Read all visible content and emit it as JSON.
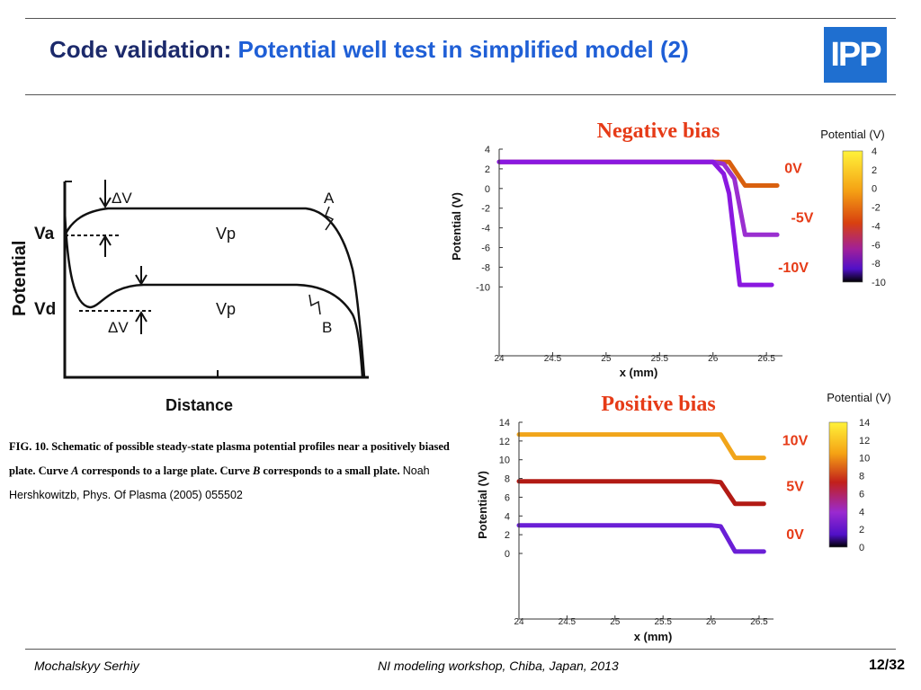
{
  "header": {
    "title_main": "Code validation:",
    "title_sub": "Potential well test in simplified model (2)",
    "logo_text": "IPP"
  },
  "schematic": {
    "y_axis_label": "Potential",
    "x_axis_label": "Distance",
    "labels": {
      "va": "Va",
      "vd": "Vd",
      "vp_top": "Vp",
      "vp_bottom": "Vp",
      "dv_top": "ΔV",
      "dv_bottom": "ΔV",
      "curve_a": "A",
      "curve_b": "B"
    }
  },
  "caption": {
    "fig": "FIG. 10. Schematic of possible steady-state plasma potential profiles near a positively biased plate. Curve",
    "a": "A",
    "mid": "corresponds to a large plate. Curve",
    "b": "B",
    "end": "corresponds to a small plate.",
    "ref": "Noah Hershkowitzb, Phys. Of Plasma (2005) 055502"
  },
  "chart_data": [
    {
      "type": "line",
      "title": "Negative bias",
      "xlabel": "x (mm)",
      "ylabel": "Potential (V)",
      "x_ticks": [
        "24",
        "24.5",
        "25",
        "25.5",
        "26",
        "26.5"
      ],
      "y_ticks": [
        "4",
        "2",
        "0",
        "-2",
        "-4",
        "-6",
        "-8",
        "-10"
      ],
      "xlim": [
        24,
        26.65
      ],
      "ylim": [
        -17,
        4
      ],
      "colorbar": {
        "label": "Potential (V)",
        "ticks": [
          "4",
          "2",
          "0",
          "-2",
          "-4",
          "-6",
          "-8",
          "-10"
        ],
        "range": [
          -10,
          4
        ]
      },
      "series": [
        {
          "name": "0V",
          "color": "#d9600f",
          "x": [
            24,
            24.5,
            25,
            25.5,
            26,
            26.1,
            26.15,
            26.3,
            26.6
          ],
          "y": [
            2.7,
            2.7,
            2.7,
            2.7,
            2.7,
            2.7,
            2.7,
            0.3,
            0.3
          ]
        },
        {
          "name": "-5V",
          "color": "#9a2fd0",
          "x": [
            24,
            24.5,
            25,
            25.5,
            26,
            26.1,
            26.2,
            26.3,
            26.6
          ],
          "y": [
            2.7,
            2.7,
            2.7,
            2.7,
            2.7,
            2.5,
            1.0,
            -4.7,
            -4.7
          ]
        },
        {
          "name": "-10V",
          "color": "#8a18e0",
          "x": [
            24,
            24.5,
            25,
            25.5,
            26,
            26.1,
            26.15,
            26.25,
            26.55
          ],
          "y": [
            2.7,
            2.7,
            2.7,
            2.7,
            2.7,
            1.5,
            -0.5,
            -9.8,
            -9.8
          ]
        }
      ]
    },
    {
      "type": "line",
      "title": "Positive bias",
      "xlabel": "x (mm)",
      "ylabel": "Potential (V)",
      "x_ticks": [
        "24",
        "24.5",
        "25",
        "25.5",
        "26",
        "26.5"
      ],
      "y_ticks": [
        "14",
        "12",
        "10",
        "8",
        "6",
        "4",
        "2",
        "0"
      ],
      "xlim": [
        24,
        26.65
      ],
      "ylim": [
        -7,
        14
      ],
      "colorbar": {
        "label": "Potential (V)",
        "ticks": [
          "14",
          "12",
          "10",
          "8",
          "6",
          "4",
          "2",
          "0"
        ],
        "range": [
          0,
          14
        ]
      },
      "series": [
        {
          "name": "10V",
          "color": "#f1a51a",
          "x": [
            24,
            24.5,
            25,
            25.5,
            26,
            26.1,
            26.25,
            26.55
          ],
          "y": [
            12.7,
            12.7,
            12.7,
            12.7,
            12.7,
            12.7,
            10.2,
            10.2
          ]
        },
        {
          "name": "5V",
          "color": "#b21a14",
          "x": [
            24,
            24.5,
            25,
            25.5,
            26,
            26.1,
            26.25,
            26.55
          ],
          "y": [
            7.7,
            7.7,
            7.7,
            7.7,
            7.7,
            7.6,
            5.3,
            5.3
          ]
        },
        {
          "name": "0V",
          "color": "#6a1fd6",
          "x": [
            24,
            24.5,
            25,
            25.5,
            26,
            26.1,
            26.25,
            26.55
          ],
          "y": [
            3.0,
            3.0,
            3.0,
            3.0,
            3.0,
            2.9,
            0.2,
            0.2
          ]
        }
      ]
    }
  ],
  "footer": {
    "author": "Mochalskyy Serhiy",
    "event": "NI modeling workshop,  Chiba, Japan, 2013",
    "page": "12/32"
  }
}
